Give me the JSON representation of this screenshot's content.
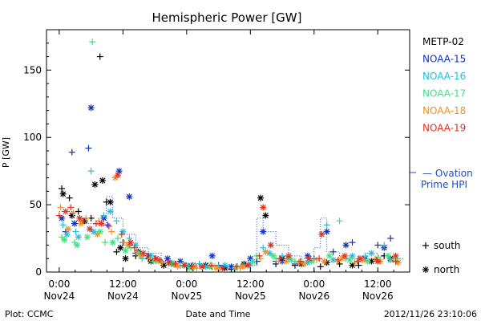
{
  "chart_data": {
    "type": "scatter",
    "title": "Hemispheric Power [GW]",
    "xlabel": "Date and Time",
    "ylabel": "P [GW]",
    "ylim": [
      0,
      180
    ],
    "xlim": [
      -0.1,
      2.75
    ],
    "x_unit": "days since 2012-11-24 00:00",
    "y_ticks": [
      0,
      50,
      100,
      150
    ],
    "x_ticks": [
      {
        "value": 0.0,
        "line1": "0:00",
        "line2": "Nov24"
      },
      {
        "value": 0.5,
        "line1": "12:00",
        "line2": "Nov24"
      },
      {
        "value": 1.0,
        "line1": "0:00",
        "line2": "Nov25"
      },
      {
        "value": 1.5,
        "line1": "12:00",
        "line2": "Nov25"
      },
      {
        "value": 2.0,
        "line1": "0:00",
        "line2": "Nov26"
      },
      {
        "value": 2.5,
        "line1": "12:00",
        "line2": "Nov26"
      }
    ],
    "footer_left": "Plot: CCMC",
    "footer_right": "2012/11/26 23:10:06",
    "marker_legend": [
      {
        "symbol": "+",
        "label": "south"
      },
      {
        "symbol": "*",
        "label": "north"
      }
    ],
    "ovation_label_line1": "— Ovation",
    "ovation_label_line2": "Prime HPI",
    "ovation_color": "#1a4fc4",
    "series": [
      {
        "name": "METP-02",
        "color": "#000000",
        "south": [
          [
            0.02,
            62
          ],
          [
            0.08,
            55
          ],
          [
            0.15,
            45
          ],
          [
            0.25,
            40
          ],
          [
            0.32,
            160
          ],
          [
            0.37,
            52
          ],
          [
            0.45,
            15
          ],
          [
            0.55,
            20
          ],
          [
            0.6,
            12
          ],
          [
            0.7,
            10
          ],
          [
            0.8,
            8
          ],
          [
            0.95,
            5
          ],
          [
            1.05,
            3
          ],
          [
            1.2,
            4
          ],
          [
            1.35,
            2
          ],
          [
            1.55,
            8
          ],
          [
            1.7,
            6
          ],
          [
            1.85,
            5
          ],
          [
            2.05,
            4
          ],
          [
            2.2,
            6
          ],
          [
            2.35,
            5
          ],
          [
            2.55,
            12
          ],
          [
            2.65,
            8
          ]
        ],
        "north": [
          [
            0.03,
            58
          ],
          [
            0.1,
            42
          ],
          [
            0.2,
            38
          ],
          [
            0.28,
            65
          ],
          [
            0.34,
            68
          ],
          [
            0.4,
            52
          ],
          [
            0.48,
            18
          ],
          [
            0.52,
            10
          ],
          [
            0.62,
            15
          ],
          [
            0.72,
            8
          ],
          [
            0.82,
            5
          ],
          [
            0.9,
            6
          ],
          [
            1.02,
            4
          ],
          [
            1.15,
            5
          ],
          [
            1.3,
            3
          ],
          [
            1.45,
            6
          ],
          [
            1.58,
            55
          ],
          [
            1.62,
            42
          ],
          [
            1.75,
            10
          ],
          [
            1.9,
            6
          ],
          [
            2.1,
            7
          ],
          [
            2.3,
            5
          ],
          [
            2.45,
            8
          ],
          [
            2.6,
            10
          ]
        ]
      },
      {
        "name": "NOAA-15",
        "color": "#1030c0",
        "south": [
          [
            0.05,
            30
          ],
          [
            0.1,
            89
          ],
          [
            0.23,
            92
          ],
          [
            0.38,
            35
          ],
          [
            0.5,
            22
          ],
          [
            0.6,
            14
          ],
          [
            0.75,
            10
          ],
          [
            0.9,
            6
          ],
          [
            1.0,
            4
          ],
          [
            1.1,
            6
          ],
          [
            1.25,
            5
          ],
          [
            1.4,
            4
          ],
          [
            1.55,
            8
          ],
          [
            1.7,
            8
          ],
          [
            1.85,
            6
          ],
          [
            2.0,
            10
          ],
          [
            2.15,
            15
          ],
          [
            2.3,
            22
          ],
          [
            2.5,
            20
          ],
          [
            2.6,
            25
          ]
        ],
        "north": [
          [
            0.02,
            40
          ],
          [
            0.12,
            36
          ],
          [
            0.25,
            122
          ],
          [
            0.35,
            40
          ],
          [
            0.47,
            75
          ],
          [
            0.55,
            56
          ],
          [
            0.7,
            12
          ],
          [
            0.85,
            10
          ],
          [
            0.95,
            8
          ],
          [
            1.05,
            5
          ],
          [
            1.2,
            12
          ],
          [
            1.35,
            4
          ],
          [
            1.5,
            10
          ],
          [
            1.6,
            30
          ],
          [
            1.75,
            8
          ],
          [
            1.95,
            12
          ],
          [
            2.1,
            30
          ],
          [
            2.25,
            20
          ],
          [
            2.4,
            10
          ],
          [
            2.55,
            18
          ]
        ]
      },
      {
        "name": "NOAA-16",
        "color": "#20c0e0",
        "south": [
          [
            0.03,
            35
          ],
          [
            0.13,
            30
          ],
          [
            0.25,
            75
          ],
          [
            0.35,
            42
          ],
          [
            0.45,
            38
          ],
          [
            0.55,
            25
          ],
          [
            0.65,
            10
          ],
          [
            0.8,
            8
          ],
          [
            0.95,
            5
          ],
          [
            1.1,
            6
          ],
          [
            1.25,
            4
          ],
          [
            1.45,
            5
          ],
          [
            1.6,
            18
          ],
          [
            1.75,
            12
          ],
          [
            1.9,
            8
          ],
          [
            2.1,
            35
          ],
          [
            2.25,
            10
          ],
          [
            2.4,
            12
          ],
          [
            2.55,
            20
          ]
        ],
        "north": [
          [
            0.06,
            28
          ],
          [
            0.15,
            26
          ],
          [
            0.27,
            30
          ],
          [
            0.4,
            45
          ],
          [
            0.5,
            30
          ],
          [
            0.6,
            20
          ],
          [
            0.72,
            12
          ],
          [
            0.87,
            7
          ],
          [
            1.0,
            5
          ],
          [
            1.15,
            4
          ],
          [
            1.3,
            5
          ],
          [
            1.5,
            6
          ],
          [
            1.65,
            14
          ],
          [
            1.8,
            10
          ],
          [
            1.95,
            7
          ],
          [
            2.15,
            9
          ],
          [
            2.3,
            12
          ],
          [
            2.45,
            14
          ],
          [
            2.6,
            9
          ]
        ]
      },
      {
        "name": "NOAA-17",
        "color": "#40e080",
        "south": [
          [
            0.02,
            26
          ],
          [
            0.12,
            22
          ],
          [
            0.26,
            171
          ],
          [
            0.36,
            22
          ],
          [
            0.46,
            25
          ],
          [
            0.56,
            18
          ],
          [
            0.66,
            12
          ],
          [
            0.76,
            9
          ],
          [
            0.9,
            6
          ],
          [
            1.05,
            4
          ],
          [
            1.2,
            5
          ],
          [
            1.4,
            4
          ],
          [
            1.55,
            12
          ],
          [
            1.7,
            10
          ],
          [
            1.85,
            8
          ],
          [
            2.0,
            9
          ],
          [
            2.2,
            38
          ],
          [
            2.35,
            10
          ],
          [
            2.5,
            11
          ],
          [
            2.65,
            10
          ]
        ],
        "north": [
          [
            0.04,
            24
          ],
          [
            0.14,
            20
          ],
          [
            0.22,
            26
          ],
          [
            0.32,
            30
          ],
          [
            0.42,
            22
          ],
          [
            0.52,
            16
          ],
          [
            0.62,
            14
          ],
          [
            0.74,
            8
          ],
          [
            0.88,
            6
          ],
          [
            1.02,
            3
          ],
          [
            1.18,
            4
          ],
          [
            1.38,
            3
          ],
          [
            1.52,
            8
          ],
          [
            1.68,
            12
          ],
          [
            1.82,
            9
          ],
          [
            1.98,
            8
          ],
          [
            2.12,
            12
          ],
          [
            2.28,
            9
          ],
          [
            2.42,
            8
          ],
          [
            2.58,
            12
          ]
        ]
      },
      {
        "name": "NOAA-18",
        "color": "#f09020",
        "south": [
          [
            0.01,
            48
          ],
          [
            0.11,
            44
          ],
          [
            0.21,
            40
          ],
          [
            0.31,
            38
          ],
          [
            0.41,
            30
          ],
          [
            0.51,
            22
          ],
          [
            0.61,
            15
          ],
          [
            0.71,
            10
          ],
          [
            0.81,
            7
          ],
          [
            0.93,
            4
          ],
          [
            1.08,
            3
          ],
          [
            1.22,
            4
          ],
          [
            1.42,
            3
          ],
          [
            1.58,
            10
          ],
          [
            1.72,
            8
          ],
          [
            1.88,
            7
          ],
          [
            2.02,
            9
          ],
          [
            2.18,
            8
          ],
          [
            2.32,
            7
          ],
          [
            2.48,
            10
          ],
          [
            2.62,
            9
          ]
        ],
        "north": [
          [
            0.07,
            32
          ],
          [
            0.17,
            36
          ],
          [
            0.3,
            28
          ],
          [
            0.44,
            70
          ],
          [
            0.54,
            20
          ],
          [
            0.64,
            12
          ],
          [
            0.78,
            8
          ],
          [
            0.92,
            5
          ],
          [
            1.06,
            4
          ],
          [
            1.24,
            3
          ],
          [
            1.44,
            4
          ],
          [
            1.62,
            15
          ],
          [
            1.78,
            8
          ],
          [
            1.92,
            6
          ],
          [
            2.08,
            8
          ],
          [
            2.22,
            10
          ],
          [
            2.38,
            9
          ],
          [
            2.52,
            8
          ],
          [
            2.66,
            7
          ]
        ]
      },
      {
        "name": "NOAA-19",
        "color": "#e03020",
        "south": [
          [
            0.0,
            42
          ],
          [
            0.09,
            48
          ],
          [
            0.19,
            38
          ],
          [
            0.29,
            36
          ],
          [
            0.39,
            34
          ],
          [
            0.49,
            28
          ],
          [
            0.59,
            18
          ],
          [
            0.69,
            12
          ],
          [
            0.79,
            9
          ],
          [
            0.91,
            6
          ],
          [
            1.04,
            4
          ],
          [
            1.19,
            5
          ],
          [
            1.39,
            4
          ],
          [
            1.57,
            12
          ],
          [
            1.73,
            10
          ],
          [
            1.89,
            8
          ],
          [
            2.04,
            10
          ],
          [
            2.19,
            9
          ],
          [
            2.34,
            8
          ],
          [
            2.49,
            9
          ],
          [
            2.64,
            8
          ]
        ],
        "north": [
          [
            0.05,
            45
          ],
          [
            0.16,
            40
          ],
          [
            0.24,
            32
          ],
          [
            0.33,
            36
          ],
          [
            0.46,
            72
          ],
          [
            0.56,
            22
          ],
          [
            0.66,
            14
          ],
          [
            0.76,
            10
          ],
          [
            0.86,
            7
          ],
          [
            0.98,
            5
          ],
          [
            1.12,
            4
          ],
          [
            1.28,
            3
          ],
          [
            1.48,
            5
          ],
          [
            1.6,
            48
          ],
          [
            1.66,
            20
          ],
          [
            1.8,
            12
          ],
          [
            1.96,
            10
          ],
          [
            2.06,
            28
          ],
          [
            2.24,
            12
          ],
          [
            2.36,
            10
          ],
          [
            2.5,
            8
          ],
          [
            2.64,
            12
          ]
        ]
      }
    ],
    "ovation_hpi": [
      [
        0.0,
        45
      ],
      [
        0.1,
        38
      ],
      [
        0.2,
        36
      ],
      [
        0.3,
        35
      ],
      [
        0.37,
        56
      ],
      [
        0.42,
        40
      ],
      [
        0.5,
        28
      ],
      [
        0.6,
        18
      ],
      [
        0.7,
        14
      ],
      [
        0.8,
        8
      ],
      [
        0.9,
        7
      ],
      [
        1.0,
        5
      ],
      [
        1.1,
        5
      ],
      [
        1.2,
        4
      ],
      [
        1.3,
        4
      ],
      [
        1.4,
        4
      ],
      [
        1.5,
        5
      ],
      [
        1.55,
        40
      ],
      [
        1.6,
        30
      ],
      [
        1.7,
        20
      ],
      [
        1.8,
        12
      ],
      [
        1.9,
        10
      ],
      [
        2.0,
        18
      ],
      [
        2.05,
        40
      ],
      [
        2.1,
        15
      ],
      [
        2.2,
        12
      ],
      [
        2.3,
        10
      ],
      [
        2.4,
        14
      ],
      [
        2.5,
        12
      ],
      [
        2.6,
        10
      ],
      [
        2.7,
        9
      ]
    ]
  }
}
